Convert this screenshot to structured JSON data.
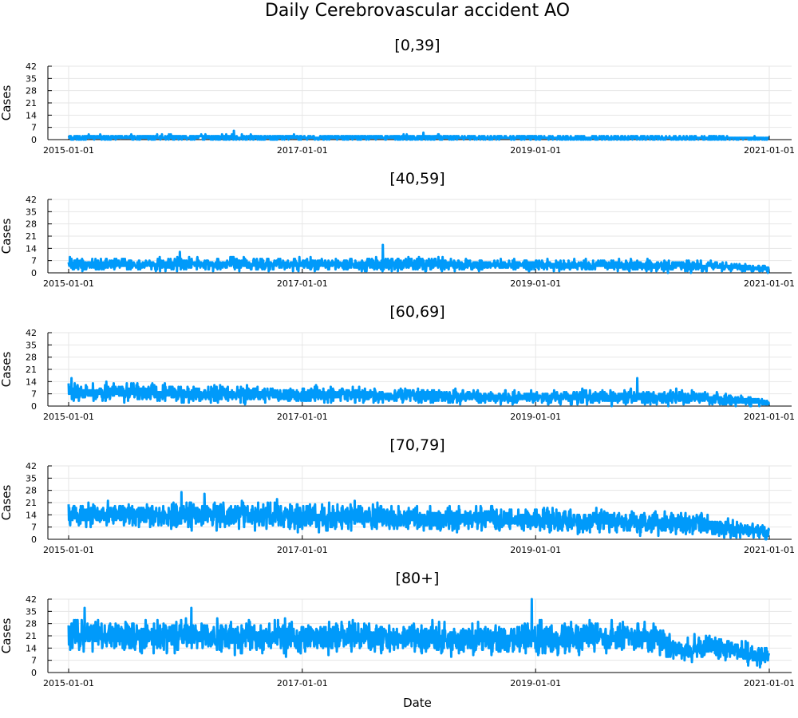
{
  "chart_data": {
    "type": "line",
    "title": "Daily Cerebrovascular accident AO",
    "xlabel": "Date",
    "ylabel": "Cases",
    "x_range": [
      "2015-01-01",
      "2021-01-01"
    ],
    "x_ticks": [
      "2015-01-01",
      "2017-01-01",
      "2019-01-01",
      "2021-01-01"
    ],
    "ylim": [
      0,
      42
    ],
    "y_ticks": [
      0,
      7,
      14,
      21,
      28,
      35,
      42
    ],
    "grid": true,
    "color": "#009AFA",
    "panels": [
      {
        "title": "[0,39]",
        "series": [
          {
            "x": [
              "2015-01-01",
              "2015-07-01",
              "2016-01-01",
              "2016-07-01",
              "2017-01-01",
              "2017-07-01",
              "2018-01-01",
              "2018-07-01",
              "2019-01-01",
              "2019-07-01",
              "2020-01-01",
              "2020-07-01",
              "2020-12-31"
            ],
            "mean": [
              1.2,
              1.2,
              1.3,
              1.2,
              1.2,
              1.1,
              1.2,
              1.1,
              1.1,
              1.0,
              1.0,
              0.9,
              0.6
            ],
            "low": [
              0,
              0,
              0,
              0,
              0,
              0,
              0,
              0,
              0,
              0,
              0,
              0,
              0
            ],
            "high": [
              3,
              3,
              4,
              5,
              3,
              3,
              4,
              3,
              3,
              3,
              3,
              3,
              2
            ],
            "peaks": [
              {
                "x": "2016-06-01",
                "y": 5
              },
              {
                "x": "2018-01-15",
                "y": 4
              }
            ]
          }
        ]
      },
      {
        "title": "[40,59]",
        "series": [
          {
            "x": [
              "2015-01-01",
              "2015-07-01",
              "2016-01-01",
              "2016-07-01",
              "2017-01-01",
              "2017-07-01",
              "2018-01-01",
              "2018-07-01",
              "2019-01-01",
              "2019-07-01",
              "2020-01-01",
              "2020-07-01",
              "2020-12-31"
            ],
            "mean": [
              5,
              5,
              5,
              5,
              5,
              5,
              5,
              4.5,
              4.5,
              4.5,
              4,
              4,
              2
            ],
            "low": [
              0,
              1,
              1,
              1,
              1,
              1,
              1,
              1,
              1,
              1,
              0,
              0,
              0
            ],
            "high": [
              10,
              10,
              11,
              11,
              11,
              11,
              12,
              9,
              9,
              9,
              9,
              8,
              5
            ],
            "peaks": [
              {
                "x": "2017-09-10",
                "y": 16
              },
              {
                "x": "2015-12-15",
                "y": 12
              }
            ]
          }
        ]
      },
      {
        "title": "[60,69]",
        "series": [
          {
            "x": [
              "2015-01-01",
              "2015-07-01",
              "2016-01-01",
              "2016-07-01",
              "2017-01-01",
              "2017-07-01",
              "2018-01-01",
              "2018-07-01",
              "2019-01-01",
              "2019-07-01",
              "2020-01-01",
              "2020-07-01",
              "2020-12-31"
            ],
            "mean": [
              8,
              8,
              7,
              7,
              6.5,
              6,
              6,
              5,
              5,
              5,
              5,
              4.5,
              2
            ],
            "low": [
              2,
              1,
              1,
              1,
              1,
              1,
              1,
              0,
              0,
              0,
              0,
              0,
              0
            ],
            "high": [
              15,
              15,
              15,
              14,
              13,
              13,
              12,
              10,
              10,
              11,
              12,
              10,
              6
            ],
            "peaks": [
              {
                "x": "2015-01-10",
                "y": 16
              },
              {
                "x": "2019-11-15",
                "y": 16
              }
            ]
          }
        ]
      },
      {
        "title": "[70,79]",
        "series": [
          {
            "x": [
              "2015-01-01",
              "2015-07-01",
              "2016-01-01",
              "2016-07-01",
              "2017-01-01",
              "2017-07-01",
              "2018-01-01",
              "2018-07-01",
              "2019-01-01",
              "2019-07-01",
              "2020-01-01",
              "2020-07-01",
              "2020-12-31"
            ],
            "mean": [
              14,
              14,
              14,
              14,
              13,
              13,
              12,
              12,
              11,
              11,
              10,
              8,
              4
            ],
            "low": [
              4,
              4,
              3,
              3,
              3,
              3,
              3,
              3,
              3,
              2,
              2,
              1,
              0
            ],
            "high": [
              24,
              24,
              25,
              25,
              24,
              24,
              22,
              22,
              21,
              21,
              20,
              18,
              10
            ],
            "peaks": [
              {
                "x": "2015-12-20",
                "y": 27
              },
              {
                "x": "2016-03-01",
                "y": 26
              }
            ]
          }
        ]
      },
      {
        "title": "[80+]",
        "series": [
          {
            "x": [
              "2015-01-01",
              "2015-07-01",
              "2016-01-01",
              "2016-07-01",
              "2017-01-01",
              "2017-07-01",
              "2018-01-01",
              "2018-07-01",
              "2019-01-01",
              "2019-07-01",
              "2020-01-01",
              "2020-03-15",
              "2020-07-01",
              "2020-12-31"
            ],
            "mean": [
              22,
              21,
              21,
              21,
              20,
              20,
              20,
              19,
              19,
              20,
              20,
              13,
              15,
              8
            ],
            "low": [
              10,
              9,
              8,
              8,
              7,
              7,
              7,
              6,
              6,
              6,
              6,
              4,
              5,
              0
            ],
            "high": [
              35,
              33,
              33,
              33,
              32,
              31,
              31,
              30,
              31,
              30,
              30,
              22,
              25,
              17
            ],
            "peaks": [
              {
                "x": "2015-02-20",
                "y": 37
              },
              {
                "x": "2016-01-20",
                "y": 37
              },
              {
                "x": "2018-12-20",
                "y": 42
              }
            ]
          }
        ]
      }
    ]
  }
}
